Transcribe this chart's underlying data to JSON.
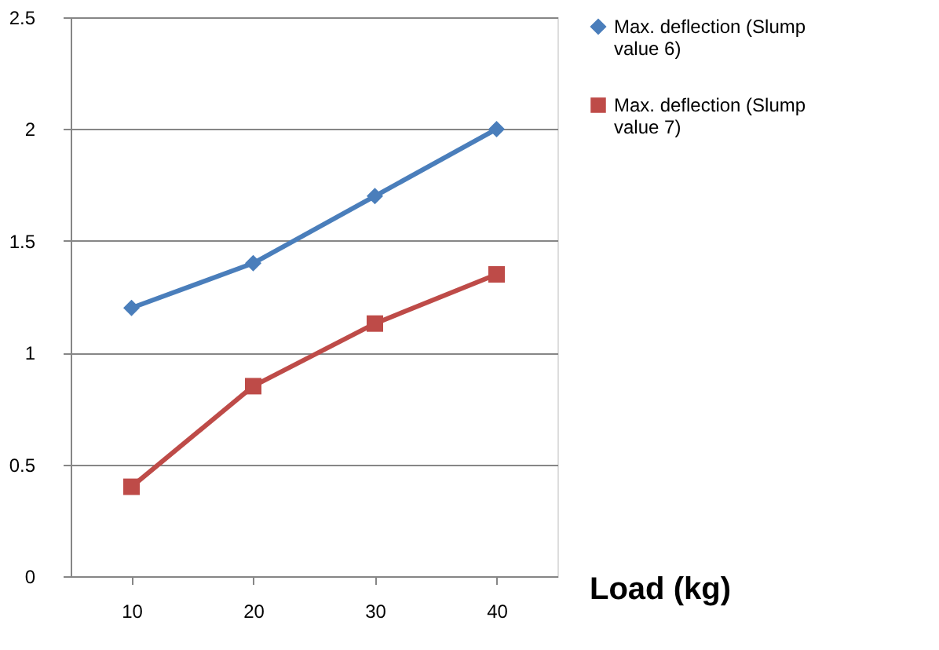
{
  "chart_data": {
    "type": "line",
    "xlabel": "Load (kg)",
    "categories": [
      "10",
      "20",
      "30",
      "40"
    ],
    "series": [
      {
        "name": "Max. deflection (Slump value 6)",
        "color": "#4a7ebb",
        "marker": "diamond",
        "values": [
          1.2,
          1.4,
          1.7,
          2.0
        ]
      },
      {
        "name": "Max. deflection (Slump value 7)",
        "color": "#be4b48",
        "marker": "square",
        "values": [
          0.4,
          0.85,
          1.13,
          1.35
        ]
      }
    ],
    "ylim": [
      0,
      2.5
    ],
    "yticks": [
      0,
      0.5,
      1,
      1.5,
      2,
      2.5
    ],
    "grid": "y",
    "legend": "right",
    "line_style": "solid"
  }
}
